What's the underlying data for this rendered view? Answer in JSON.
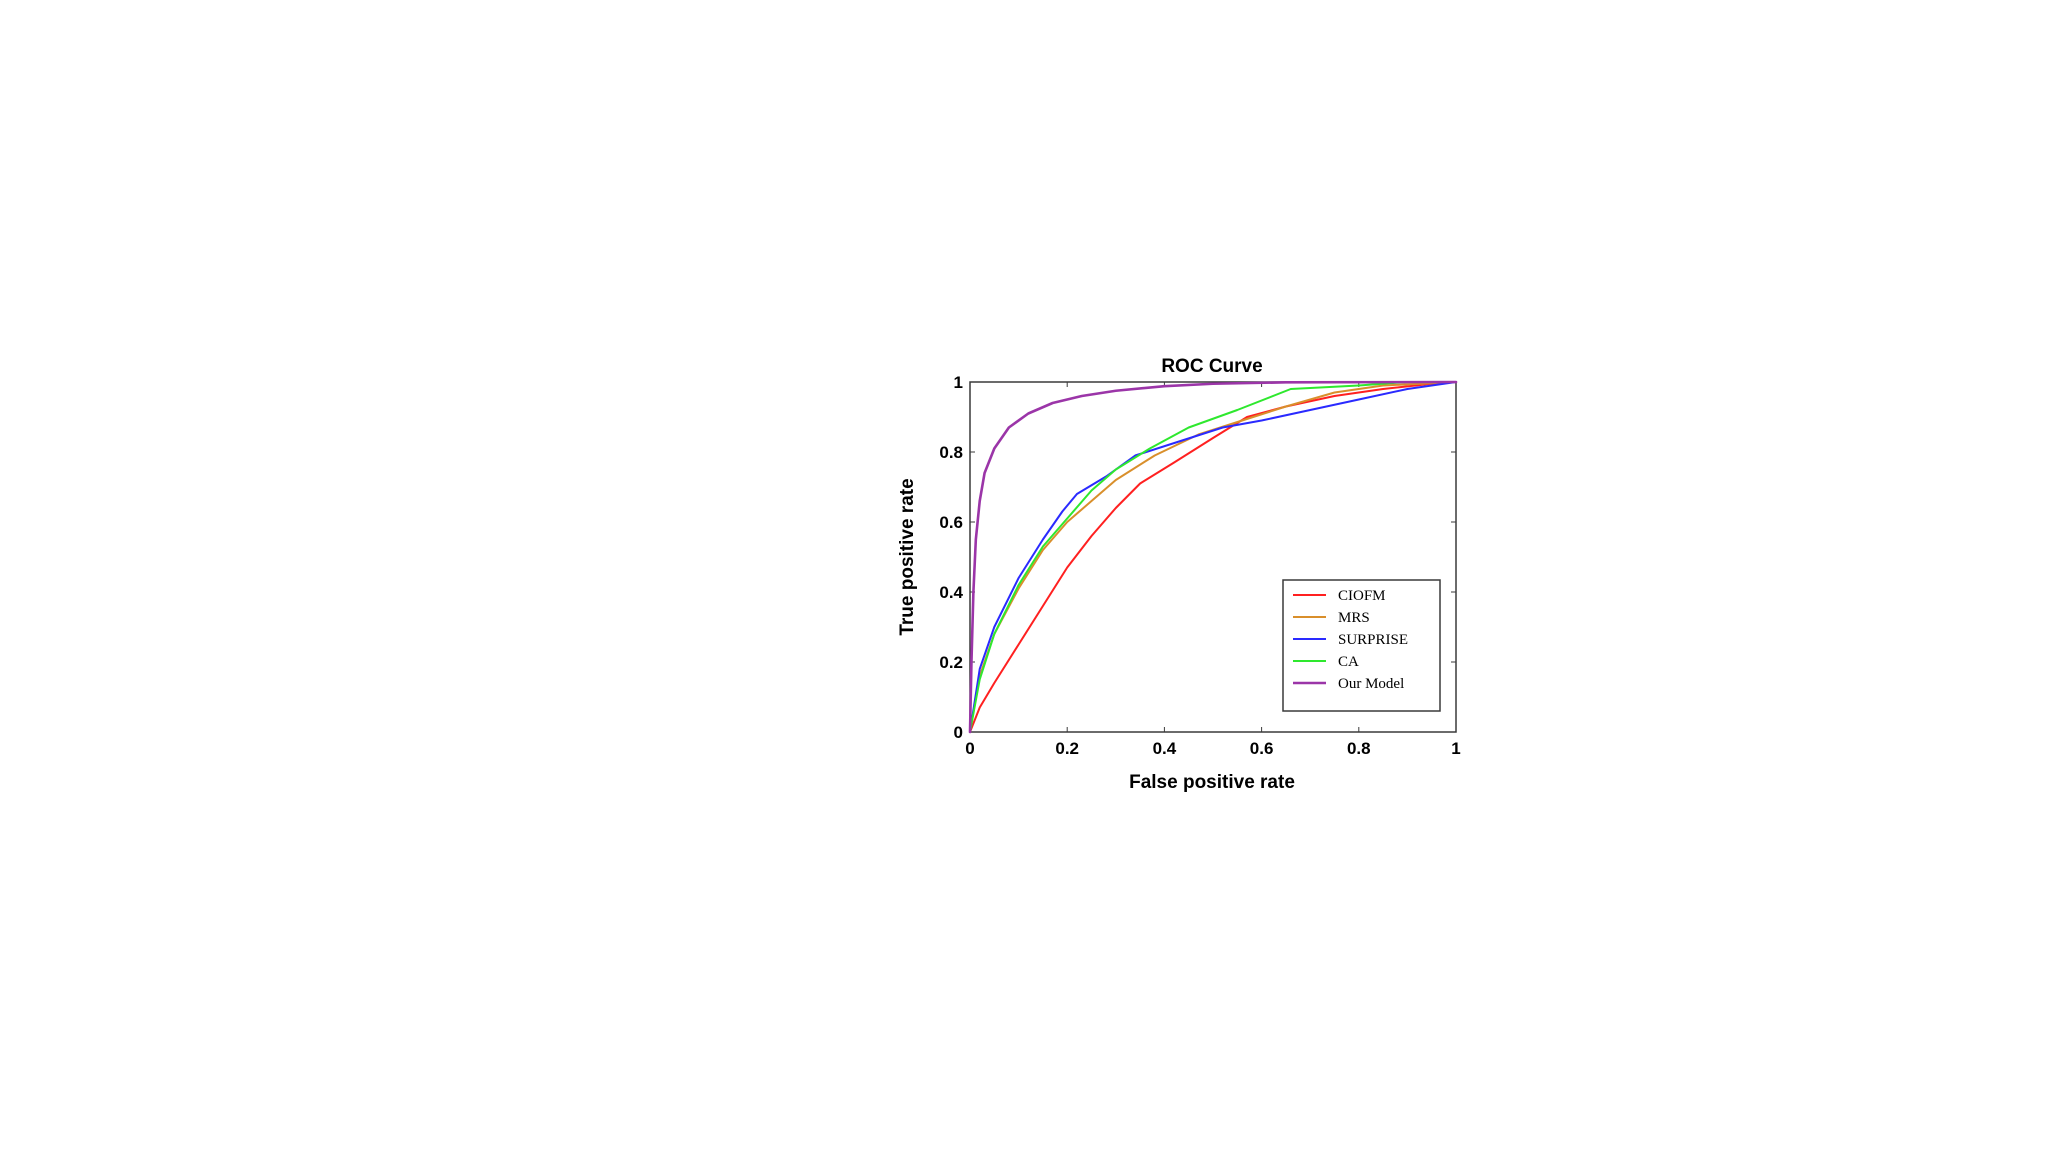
{
  "chart_data": {
    "type": "line",
    "title": "ROC Curve",
    "xlabel": "False positive rate",
    "ylabel": "True positive rate",
    "xlim": [
      0,
      1
    ],
    "ylim": [
      0,
      1
    ],
    "x_ticks": [
      "0",
      "0.2",
      "0.4",
      "0.6",
      "0.8",
      "1"
    ],
    "y_ticks": [
      "0",
      "0.2",
      "0.4",
      "0.6",
      "0.8",
      "1"
    ],
    "grid": false,
    "legend_position": "lower-right",
    "series": [
      {
        "name": "CIOFM",
        "color": "#ff2020",
        "points": [
          [
            0,
            0
          ],
          [
            0.02,
            0.07
          ],
          [
            0.05,
            0.14
          ],
          [
            0.1,
            0.25
          ],
          [
            0.15,
            0.36
          ],
          [
            0.2,
            0.47
          ],
          [
            0.25,
            0.56
          ],
          [
            0.3,
            0.64
          ],
          [
            0.35,
            0.71
          ],
          [
            0.42,
            0.77
          ],
          [
            0.5,
            0.84
          ],
          [
            0.57,
            0.9
          ],
          [
            0.65,
            0.93
          ],
          [
            0.75,
            0.96
          ],
          [
            0.85,
            0.98
          ],
          [
            0.95,
            0.995
          ],
          [
            1,
            1
          ]
        ]
      },
      {
        "name": "MRS",
        "color": "#d98f2b",
        "points": [
          [
            0,
            0
          ],
          [
            0.02,
            0.16
          ],
          [
            0.05,
            0.28
          ],
          [
            0.1,
            0.41
          ],
          [
            0.15,
            0.52
          ],
          [
            0.2,
            0.6
          ],
          [
            0.25,
            0.66
          ],
          [
            0.3,
            0.72
          ],
          [
            0.38,
            0.79
          ],
          [
            0.47,
            0.85
          ],
          [
            0.56,
            0.89
          ],
          [
            0.65,
            0.93
          ],
          [
            0.75,
            0.97
          ],
          [
            0.85,
            0.99
          ],
          [
            1,
            1
          ]
        ]
      },
      {
        "name": "SURPRISE",
        "color": "#2a2aff",
        "points": [
          [
            0,
            0
          ],
          [
            0.02,
            0.18
          ],
          [
            0.05,
            0.3
          ],
          [
            0.1,
            0.44
          ],
          [
            0.15,
            0.55
          ],
          [
            0.19,
            0.63
          ],
          [
            0.22,
            0.68
          ],
          [
            0.28,
            0.73
          ],
          [
            0.34,
            0.79
          ],
          [
            0.43,
            0.83
          ],
          [
            0.52,
            0.87
          ],
          [
            0.6,
            0.89
          ],
          [
            0.7,
            0.92
          ],
          [
            0.8,
            0.95
          ],
          [
            0.9,
            0.98
          ],
          [
            1,
            1
          ]
        ]
      },
      {
        "name": "CA",
        "color": "#2ee82e",
        "points": [
          [
            0,
            0
          ],
          [
            0.02,
            0.15
          ],
          [
            0.05,
            0.28
          ],
          [
            0.1,
            0.42
          ],
          [
            0.15,
            0.53
          ],
          [
            0.2,
            0.61
          ],
          [
            0.25,
            0.69
          ],
          [
            0.3,
            0.75
          ],
          [
            0.37,
            0.81
          ],
          [
            0.45,
            0.87
          ],
          [
            0.55,
            0.92
          ],
          [
            0.66,
            0.98
          ],
          [
            0.8,
            0.99
          ],
          [
            0.9,
            1.0
          ],
          [
            1,
            1
          ]
        ]
      },
      {
        "name": "Our Model",
        "color": "#9b35a8",
        "points": [
          [
            0,
            0
          ],
          [
            0.003,
            0.2
          ],
          [
            0.007,
            0.4
          ],
          [
            0.012,
            0.55
          ],
          [
            0.02,
            0.66
          ],
          [
            0.03,
            0.74
          ],
          [
            0.05,
            0.81
          ],
          [
            0.08,
            0.87
          ],
          [
            0.12,
            0.91
          ],
          [
            0.17,
            0.94
          ],
          [
            0.23,
            0.96
          ],
          [
            0.3,
            0.975
          ],
          [
            0.4,
            0.988
          ],
          [
            0.5,
            0.995
          ],
          [
            0.65,
            0.999
          ],
          [
            1,
            1
          ]
        ]
      }
    ]
  }
}
